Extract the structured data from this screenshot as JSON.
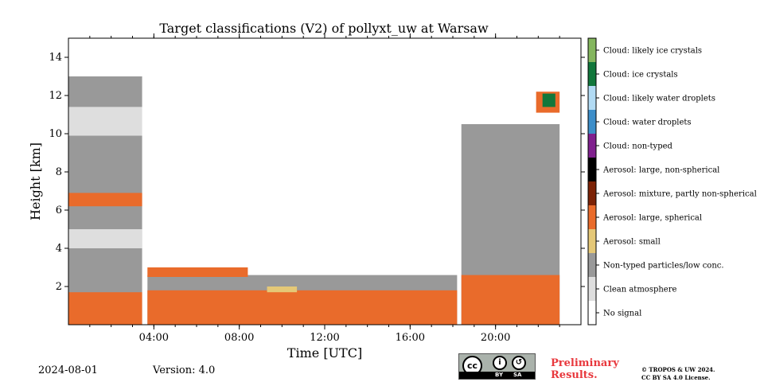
{
  "chart_data": {
    "type": "heatmap",
    "title": "Target classifications (V2) of pollyxt_uw at Warsaw",
    "xlabel": "Time [UTC]",
    "ylabel": "Height [km]",
    "xlim": [
      0,
      24
    ],
    "ylim": [
      0,
      15
    ],
    "xticks": [
      {
        "value": 4,
        "label": "04:00"
      },
      {
        "value": 8,
        "label": "08:00"
      },
      {
        "value": 12,
        "label": "12:00"
      },
      {
        "value": 16,
        "label": "16:00"
      },
      {
        "value": 20,
        "label": "20:00"
      }
    ],
    "yticks": [
      {
        "value": 2,
        "label": "2"
      },
      {
        "value": 4,
        "label": "4"
      },
      {
        "value": 6,
        "label": "6"
      },
      {
        "value": 8,
        "label": "8"
      },
      {
        "value": 10,
        "label": "10"
      },
      {
        "value": 12,
        "label": "12"
      },
      {
        "value": 14,
        "label": "14"
      }
    ],
    "x_minor_tick_step": 1,
    "colorbar_classes": [
      {
        "label": "No signal",
        "color": "#ffffff"
      },
      {
        "label": "Clean atmosphere",
        "color": "#dedede"
      },
      {
        "label": "Non-typed particles/low conc.",
        "color": "#999999"
      },
      {
        "label": "Aerosol: small",
        "color": "#e5c877"
      },
      {
        "label": "Aerosol: large, spherical",
        "color": "#e96b2b"
      },
      {
        "label": "Aerosol: mixture, partly non-spherical",
        "color": "#7c2206"
      },
      {
        "label": "Aerosol: large, non-spherical",
        "color": "#000000"
      },
      {
        "label": "Cloud: non-typed",
        "color": "#80208e"
      },
      {
        "label": "Cloud: water droplets",
        "color": "#3d8ec9"
      },
      {
        "label": "Cloud: likely water droplets",
        "color": "#b2dbf4"
      },
      {
        "label": "Cloud: ice crystals",
        "color": "#11773b"
      },
      {
        "label": "Cloud: likely ice crystals",
        "color": "#84b65e"
      }
    ],
    "regions": [
      {
        "class": "Non-typed particles/low conc.",
        "t0": 0,
        "t1": 3.45,
        "h0": 0,
        "h1": 9.9
      },
      {
        "class": "Clean atmosphere",
        "t0": 0,
        "t1": 3.45,
        "h0": 9.9,
        "h1": 11.4
      },
      {
        "class": "Non-typed particles/low conc.",
        "t0": 0,
        "t1": 3.45,
        "h0": 11.4,
        "h1": 13.0
      },
      {
        "class": "Aerosol: large, spherical",
        "t0": 0,
        "t1": 3.45,
        "h0": 6.2,
        "h1": 6.9
      },
      {
        "class": "Clean atmosphere",
        "t0": 0,
        "t1": 3.45,
        "h0": 4.0,
        "h1": 5.0
      },
      {
        "class": "Aerosol: large, spherical",
        "t0": 0,
        "t1": 3.45,
        "h0": 0,
        "h1": 1.7
      },
      {
        "class": "Non-typed particles/low conc.",
        "t0": 3.7,
        "t1": 18.2,
        "h0": 0,
        "h1": 2.6
      },
      {
        "class": "Aerosol: large, spherical",
        "t0": 3.7,
        "t1": 18.2,
        "h0": 0,
        "h1": 1.8
      },
      {
        "class": "Aerosol: large, spherical",
        "t0": 3.7,
        "t1": 8.4,
        "h0": 2.5,
        "h1": 3.0
      },
      {
        "class": "Aerosol: small",
        "t0": 9.3,
        "t1": 10.7,
        "h0": 1.7,
        "h1": 2.0
      },
      {
        "class": "Non-typed particles/low conc.",
        "t0": 18.4,
        "t1": 23.0,
        "h0": 0,
        "h1": 10.5
      },
      {
        "class": "Aerosol: large, spherical",
        "t0": 18.4,
        "t1": 23.0,
        "h0": 0,
        "h1": 2.6
      },
      {
        "class": "Aerosol: large, spherical",
        "t0": 21.9,
        "t1": 23.0,
        "h0": 11.1,
        "h1": 12.2
      },
      {
        "class": "Cloud: ice crystals",
        "t0": 22.2,
        "t1": 22.8,
        "h0": 11.4,
        "h1": 12.1
      }
    ]
  },
  "footer": {
    "date": "2024-08-01",
    "version": "Version: 4.0",
    "license_by": "BY",
    "license_sa": "SA",
    "license_cc": "cc",
    "preliminary": "Preliminary Results.",
    "copyright_line1": "© TROPOS & UW 2024.",
    "copyright_line2": "CC BY SA 4.0 License."
  }
}
